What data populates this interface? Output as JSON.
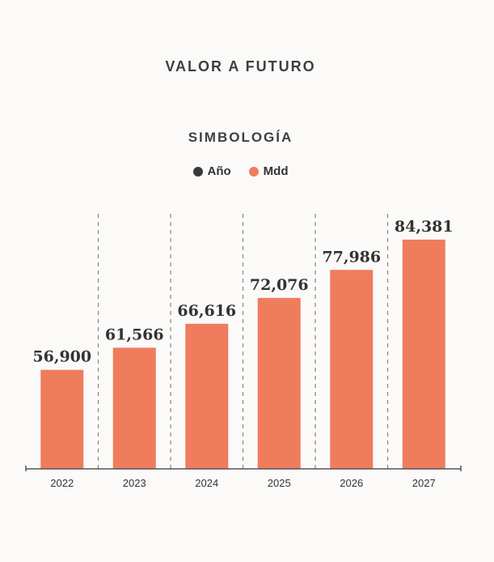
{
  "title": "VALOR A FUTURO",
  "legend": {
    "title": "SIMBOLOGÍA",
    "items": [
      {
        "label": "Año",
        "color": "#3a3a3a"
      },
      {
        "label": "Mdd",
        "color": "#f07c5e"
      }
    ]
  },
  "chart_data": {
    "type": "bar",
    "categories": [
      "2022",
      "2023",
      "2024",
      "2025",
      "2026",
      "2027"
    ],
    "values": [
      56900,
      61566,
      66616,
      72076,
      77986,
      84381
    ],
    "value_labels": [
      "56,900",
      "61,566",
      "66,616",
      "72,076",
      "77,986",
      "84,381"
    ],
    "ylim": [
      36000,
      90000
    ],
    "grid": "vertical dashed separators",
    "bar_color": "#f07c5e"
  }
}
